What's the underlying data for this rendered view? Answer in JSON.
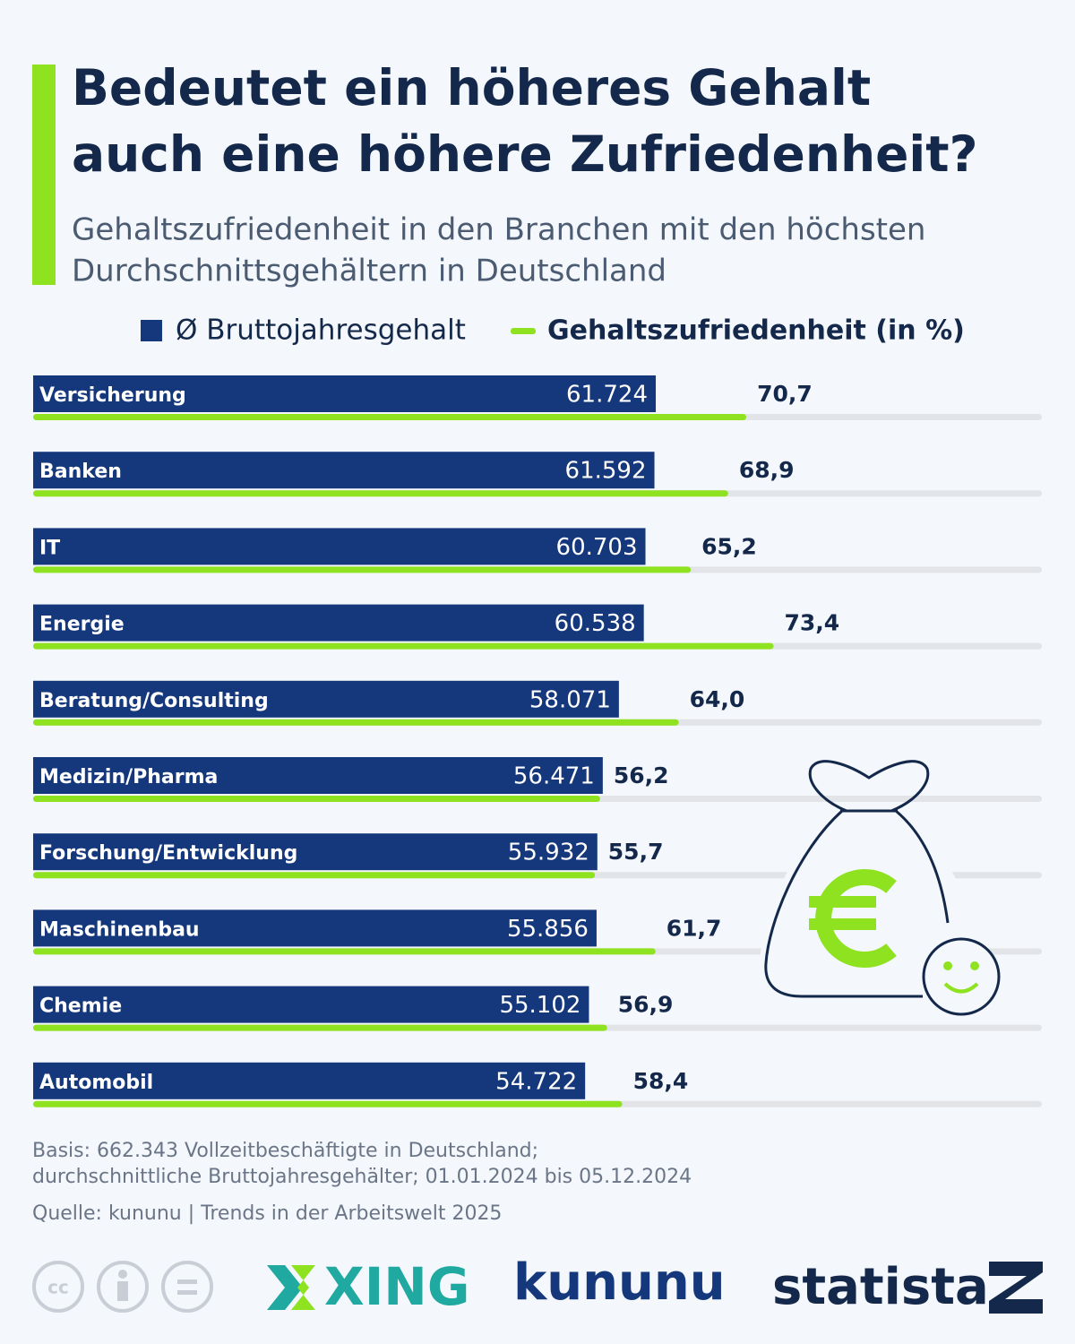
{
  "chart_data": {
    "type": "bar",
    "title": [
      "Bedeutet ein höheres Gehalt",
      "auch eine höhere Zufriedenheit?"
    ],
    "subtitle": [
      "Gehaltszufriedenheit in den Branchen mit den höchsten",
      "Durchschnittsgehältern in Deutschland"
    ],
    "categories": [
      "Versicherung",
      "Banken",
      "IT",
      "Energie",
      "Beratung/Consulting",
      "Medizin/Pharma",
      "Forschung/Entwicklung",
      "Maschinenbau",
      "Chemie",
      "Automobil"
    ],
    "series": [
      {
        "name": "Ø Bruttojahresgehalt",
        "color": "#15387c",
        "values": [
          61724,
          61592,
          60703,
          60538,
          58071,
          56471,
          55932,
          55856,
          55102,
          54722
        ],
        "value_labels": [
          "61.724",
          "61.592",
          "60.703",
          "60.538",
          "58.071",
          "56.471",
          "55.932",
          "55.856",
          "55.102",
          "54.722"
        ]
      },
      {
        "name": "Gehaltszufriedenheit (in %)",
        "color": "#8ee21f",
        "axis": "x2",
        "values": [
          70.7,
          68.9,
          65.2,
          73.4,
          64.0,
          56.2,
          55.7,
          61.7,
          56.9,
          58.4
        ],
        "value_labels": [
          "70,7",
          "68,9",
          "65,2",
          "73,4",
          "64,0",
          "56,2",
          "55,7",
          "61,7",
          "56,9",
          "58,4"
        ]
      }
    ],
    "xlim": [
      0,
      100000
    ],
    "x2lim": [
      0,
      100
    ]
  },
  "footer": {
    "basis": [
      "Basis: 662.343 Vollzeitbeschäftigte in Deutschland;",
      "durchschnittliche Bruttojahresgehälter; 01.01.2024 bis 05.12.2024"
    ],
    "source": "Quelle: kununu | Trends in der Arbeitswelt 2025",
    "license": "cc",
    "logos": [
      "XING",
      "kununu",
      "statista"
    ]
  }
}
